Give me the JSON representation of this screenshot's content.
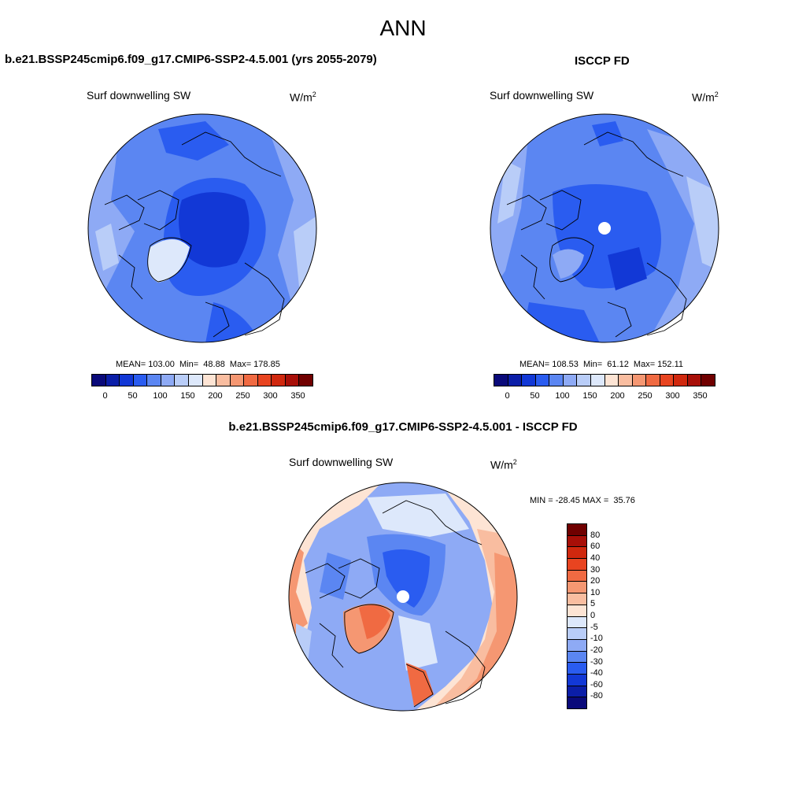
{
  "figure": {
    "title": "ANN"
  },
  "palette_abs": [
    "#0a0a7a",
    "#0b1ea8",
    "#1238d6",
    "#2a5cf0",
    "#5b86f2",
    "#8eaaf5",
    "#b9cdf8",
    "#dde8fb",
    "#fde4d4",
    "#f9bda0",
    "#f59772",
    "#f06a42",
    "#e84420",
    "#d0280e",
    "#a80f08",
    "#700000"
  ],
  "palette_diff": [
    "#700000",
    "#a80f08",
    "#d0280e",
    "#e84420",
    "#f06a42",
    "#f59772",
    "#f9bda0",
    "#fde4d4",
    "#dde8fb",
    "#b9cdf8",
    "#8eaaf5",
    "#5b86f2",
    "#2a5cf0",
    "#1238d6",
    "#0b1ea8",
    "#0a0a7a"
  ],
  "panels": [
    {
      "title": "b.e21.BSSP245cmip6.f09_g17.CMIP6-SSP2-4.5.001 (yrs 2055-2079)",
      "variable": "Surf downwelling SW",
      "units_base": "W/m",
      "units_exp": "2",
      "stats": "MEAN= 103.00  Min=  48.88  Max= 178.85",
      "colorbar_ticks": [
        "0",
        "50",
        "100",
        "150",
        "200",
        "250",
        "300",
        "350"
      ]
    },
    {
      "title": "ISCCP FD",
      "variable": "Surf downwelling SW",
      "units_base": "W/m",
      "units_exp": "2",
      "stats": "MEAN= 108.53  Min=  61.12  Max= 152.11",
      "colorbar_ticks": [
        "0",
        "50",
        "100",
        "150",
        "200",
        "250",
        "300",
        "350"
      ]
    },
    {
      "title": "b.e21.BSSP245cmip6.f09_g17.CMIP6-SSP2-4.5.001 - ISCCP FD",
      "variable": "Surf downwelling SW",
      "units_base": "W/m",
      "units_exp": "2",
      "stats": "MIN = -28.45 MAX =  35.76",
      "colorbar_ticks": [
        "80",
        "60",
        "40",
        "30",
        "20",
        "10",
        "5",
        "0",
        "-5",
        "-10",
        "-20",
        "-30",
        "-40",
        "-60",
        "-80"
      ]
    }
  ]
}
